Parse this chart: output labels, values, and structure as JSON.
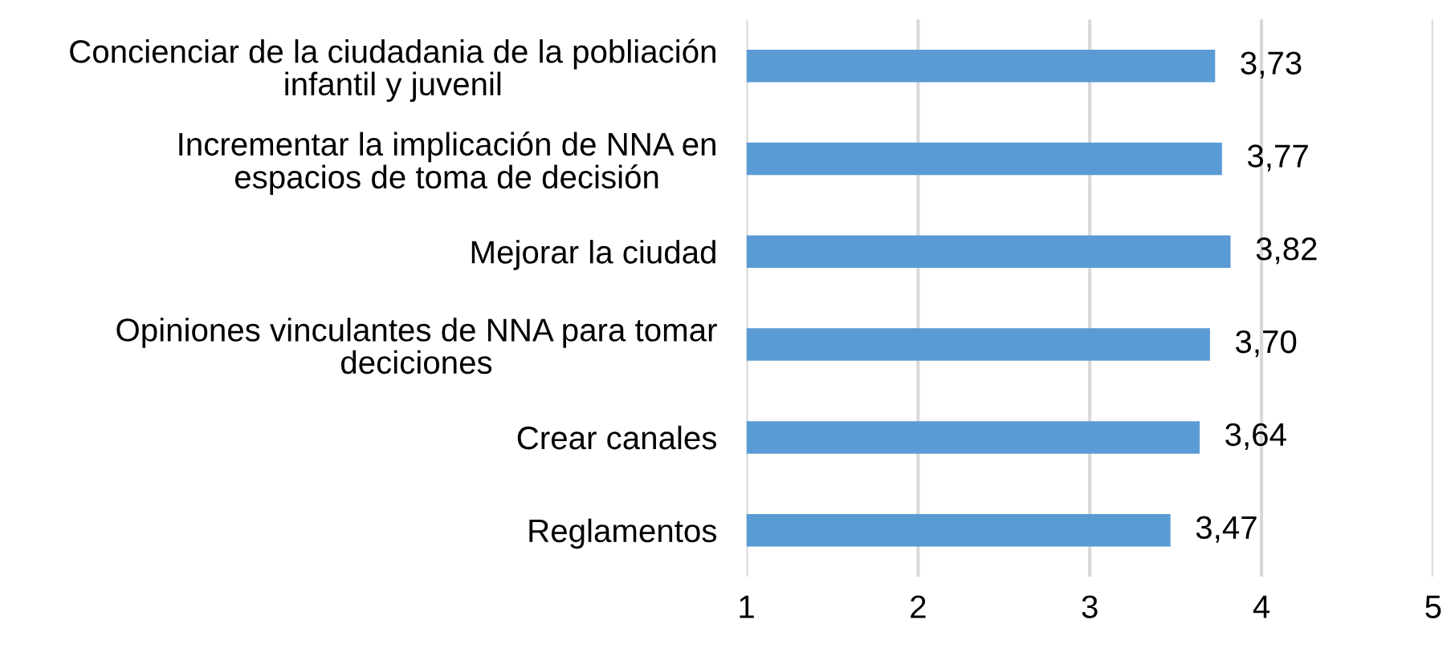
{
  "chart_data": {
    "type": "bar",
    "orientation": "horizontal",
    "categories": [
      "Concienciar de la ciudadania de la pobliación\ninfantil y juvenil",
      "Incrementar la implicación de NNA en\nespacios de toma de decisión",
      "Mejorar la ciudad",
      "Opiniones vinculantes de NNA para tomar\ndeciciones",
      "Crear canales",
      "Reglamentos"
    ],
    "values": [
      3.73,
      3.77,
      3.82,
      3.7,
      3.64,
      3.47
    ],
    "value_labels": [
      "3,73",
      "3,77",
      "3,82",
      "3,70",
      "3,64",
      "3,47"
    ],
    "color": "#5b9bd5",
    "xlim": [
      1,
      5
    ],
    "xticks": [
      1,
      2,
      3,
      4,
      5
    ],
    "grid": "x",
    "legend": false
  }
}
